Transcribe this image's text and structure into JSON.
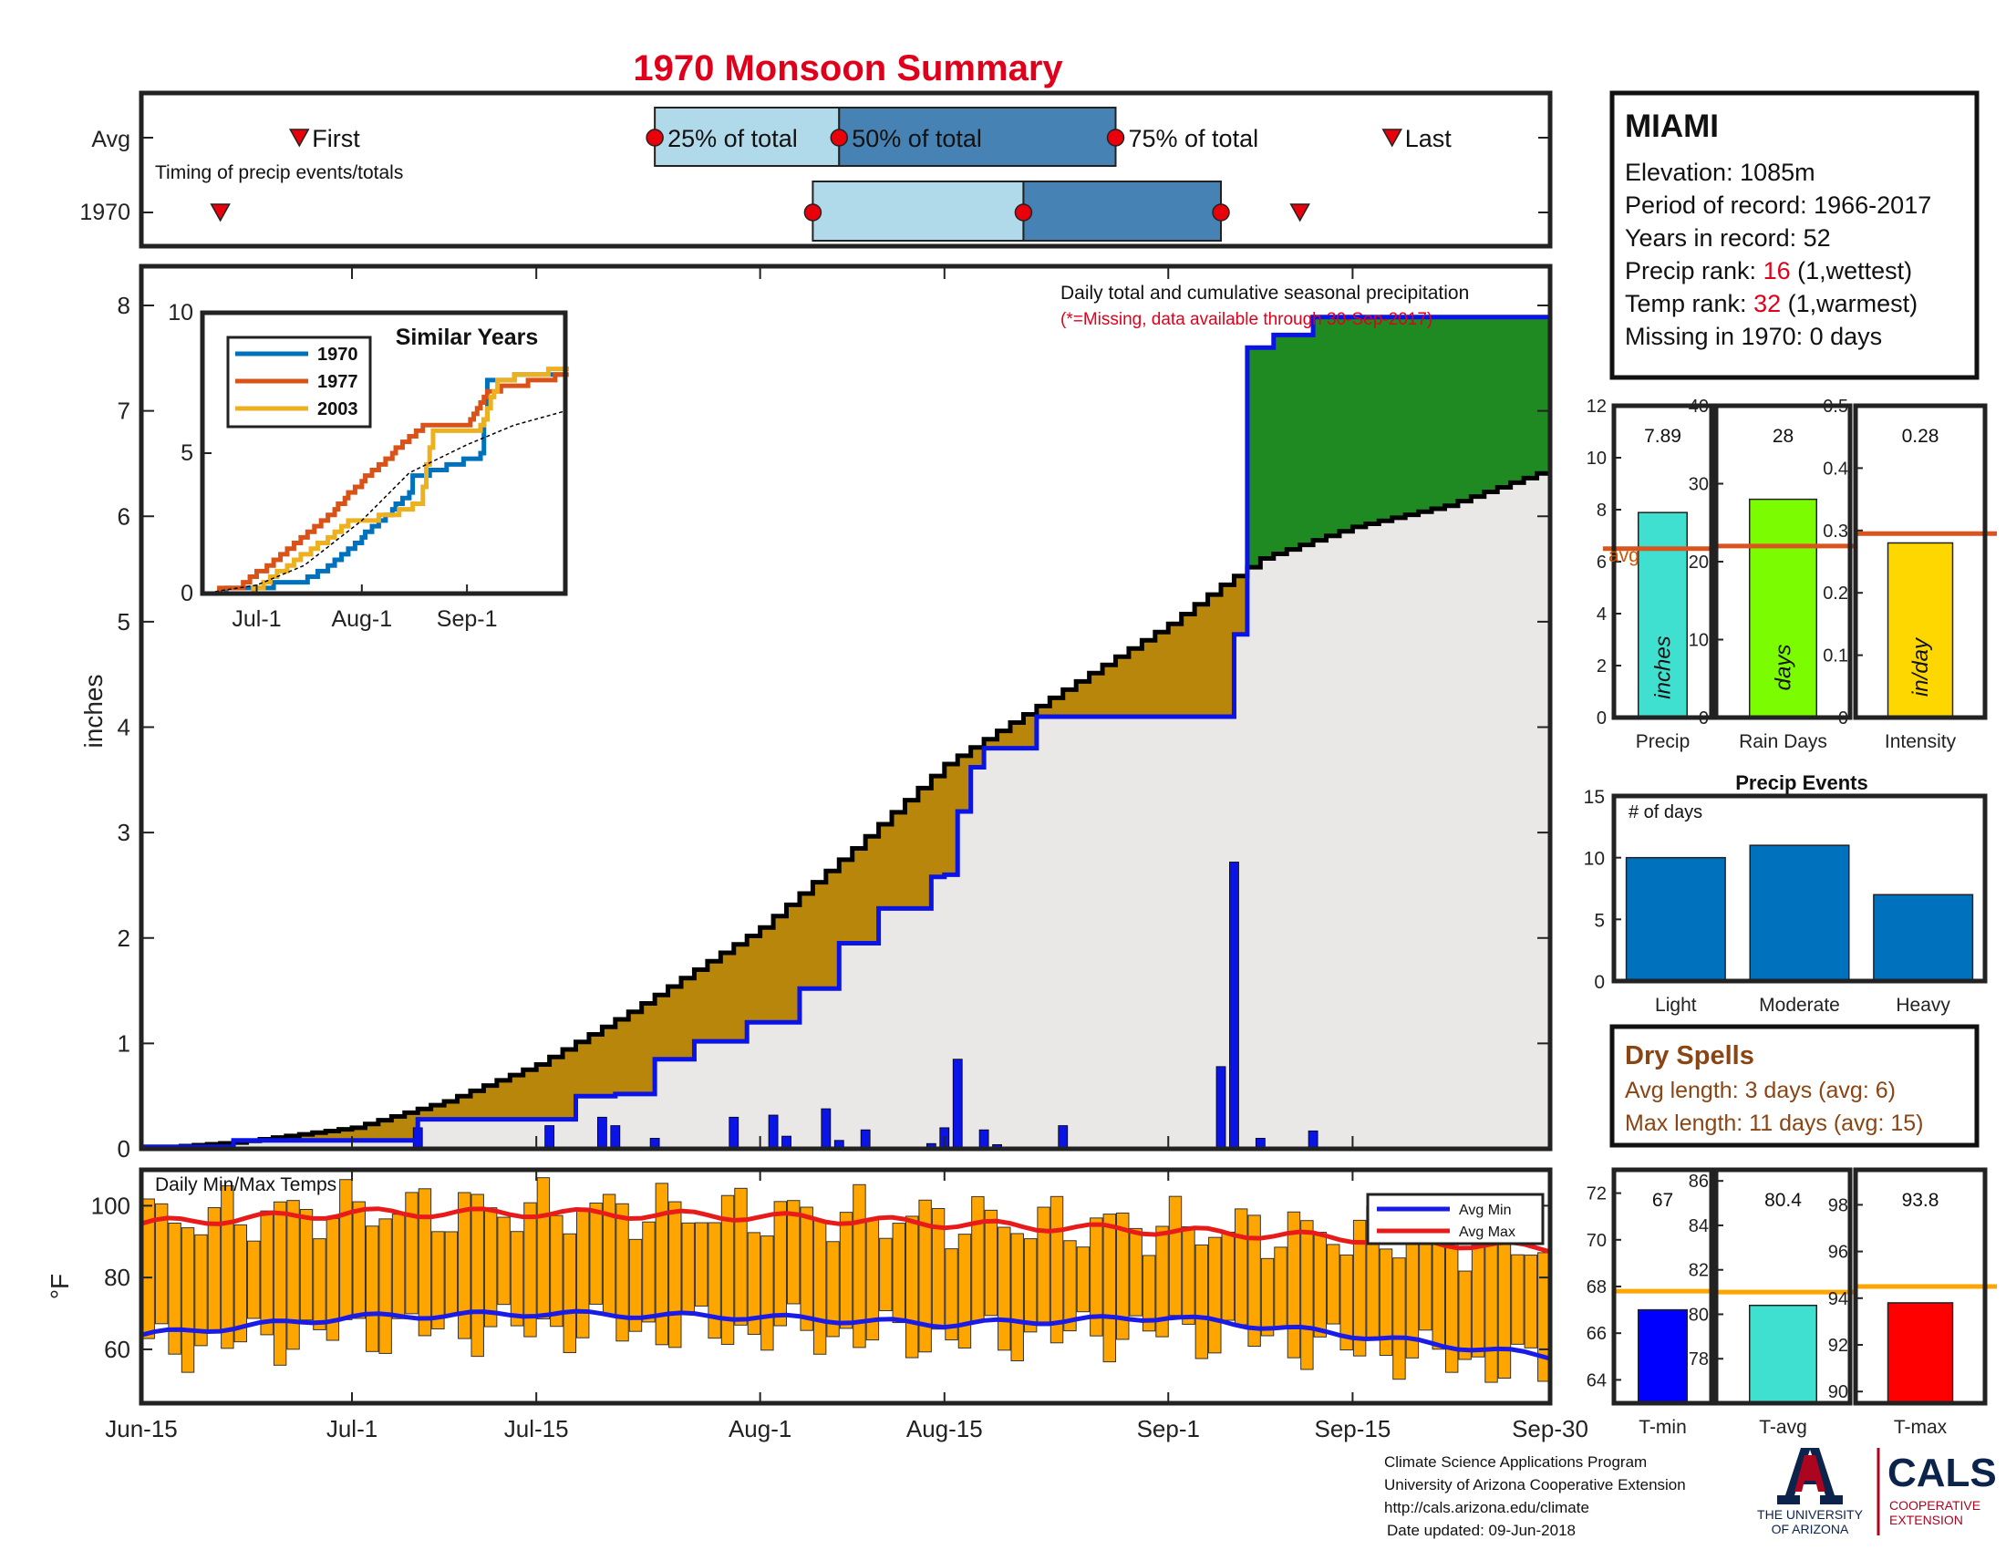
{
  "title": "1970 Monsoon Summary",
  "colors": {
    "title": "#e0001b",
    "frame": "#222222",
    "q_light": "#b0d9ea",
    "q_dark": "#4682b4",
    "marker": "#e8000b",
    "above_avg": "#1f8a22",
    "below_avg": "#b8860b",
    "avg_fill": "#e9e8e7",
    "obs_line": "#0a14e6",
    "bars": "#0a14e6",
    "temp_bar": "#ffa500",
    "avg_min": "#1b1be8",
    "avg_max": "#e81b1b",
    "brown": "#8b4513",
    "red_rank": "#e0001b",
    "uofa_blue": "#0c234b",
    "uofa_red": "#ab0520"
  },
  "timing": {
    "row_avg": "Avg",
    "row_year": "1970",
    "first_label": "First",
    "last_label": "Last",
    "q25_label": "25% of total",
    "q50_label": "50% of total",
    "q75_label": "75% of total",
    "caption": "Timing of precip events/totals",
    "avg": {
      "first": "2018-06-27",
      "q25": "2018-07-24",
      "q50": "2018-08-07",
      "q75": "2018-08-28",
      "last": "2018-09-18"
    },
    "year": {
      "first": "2018-06-21",
      "q25": "2018-08-05",
      "q50": "2018-08-21",
      "q75": "2018-09-05",
      "last": "2018-09-11"
    }
  },
  "info": {
    "station": "MIAMI",
    "elevation": "Elevation: 1085m",
    "period": "Period of record: 1966-2017",
    "years": "Years in record: 52",
    "precip_rank_prefix": "Precip rank: ",
    "precip_rank_value": "16",
    "precip_rank_suffix": " (1,wettest)",
    "temp_rank_prefix": "Temp rank: ",
    "temp_rank_value": "32",
    "temp_rank_suffix": " (1,warmest)",
    "missing": "Missing in 1970: 0 days"
  },
  "main": {
    "ylabel": "inches",
    "title_line1": "Daily total and cumulative seasonal precipitation",
    "title_line2": "(*=Missing, data available through 30-Sep-2017)",
    "x_ticks": [
      "Jun-15",
      "Jul-1",
      "Jul-15",
      "Aug-1",
      "Aug-15",
      "Sep-1",
      "Sep-15",
      "Sep-30"
    ],
    "y_ticks": [
      "0",
      "1",
      "2",
      "3",
      "4",
      "5",
      "6",
      "7",
      "8"
    ]
  },
  "inset": {
    "title": "Similar Years",
    "legend": [
      "1970",
      "1977",
      "2003"
    ],
    "series_colors": [
      "#0072bd",
      "#d95319",
      "#edb120"
    ],
    "x_ticks": [
      "Jul-1",
      "Aug-1",
      "Sep-1"
    ],
    "y_ticks": [
      "0",
      "5",
      "10"
    ]
  },
  "temps": {
    "title": "Daily Min/Max Temps",
    "ylabel": "°F",
    "y_ticks": [
      "60",
      "80",
      "100"
    ],
    "legend_min": "Avg Min",
    "legend_max": "Avg Max"
  },
  "stats": {
    "precip": {
      "value_label": "7.89",
      "unit": "inches",
      "xlabel": "Precip",
      "avg_label": "avg",
      "y_ticks": [
        "0",
        "2",
        "4",
        "6",
        "8",
        "10",
        "12"
      ]
    },
    "rain_days": {
      "value_label": "28",
      "unit": "days",
      "xlabel": "Rain Days",
      "y_ticks": [
        "0",
        "10",
        "20",
        "30",
        "40"
      ]
    },
    "intensity": {
      "value_label": "0.28",
      "unit": "in/day",
      "xlabel": "Intensity",
      "y_ticks": [
        "0",
        "0.1",
        "0.2",
        "0.3",
        "0.4",
        "0.5"
      ]
    }
  },
  "events": {
    "title": "Precip Events",
    "ylabel": "# of days",
    "y_ticks": [
      "0",
      "5",
      "10",
      "15"
    ]
  },
  "dry_spells": {
    "title": "Dry Spells",
    "avg_length": "Avg length: 3 days (avg: 6)",
    "max_length": "Max length: 11 days (avg: 15)"
  },
  "temp_stats": {
    "tmin": {
      "value_label": "67",
      "xlabel": "T-min",
      "y_ticks": [
        "64",
        "66",
        "68",
        "70",
        "72"
      ]
    },
    "tavg": {
      "value_label": "80.4",
      "xlabel": "T-avg",
      "y_ticks": [
        "78",
        "80",
        "82",
        "84",
        "86"
      ]
    },
    "tmax": {
      "value_label": "93.8",
      "xlabel": "T-max",
      "y_ticks": [
        "90",
        "92",
        "94",
        "96",
        "98"
      ]
    }
  },
  "footer": {
    "line1": "Climate Science Applications Program",
    "line2": "University of Arizona Cooperative Extension",
    "line3": "http://cals.arizona.edu/climate",
    "line4": "Date updated: 09-Jun-2018",
    "uofa_line1": "THE UNIVERSITY",
    "uofa_line2": "OF ARIZONA",
    "cals": "CALS",
    "cals_sub1": "COOPERATIVE",
    "cals_sub2": "EXTENSION"
  },
  "chart_data": [
    {
      "type": "line",
      "title": "Daily total and cumulative seasonal precipitation",
      "xlabel": "",
      "ylabel": "inches",
      "xlim": [
        "2018-06-15",
        "2018-09-30"
      ],
      "ylim": [
        0,
        8
      ],
      "series": [
        {
          "name": "1970 cumulative",
          "x": [
            "2018-06-15",
            "2018-06-22",
            "2018-07-05",
            "2018-07-06",
            "2018-07-15",
            "2018-07-18",
            "2018-07-21",
            "2018-07-24",
            "2018-07-27",
            "2018-07-31",
            "2018-08-04",
            "2018-08-07",
            "2018-08-10",
            "2018-08-14",
            "2018-08-15",
            "2018-08-16",
            "2018-08-17",
            "2018-08-18",
            "2018-08-21",
            "2018-08-22",
            "2018-09-05",
            "2018-09-06",
            "2018-09-07",
            "2018-09-09",
            "2018-09-12",
            "2018-09-30"
          ],
          "values": [
            0.02,
            0.08,
            0.08,
            0.28,
            0.28,
            0.5,
            0.52,
            0.85,
            1.02,
            1.2,
            1.52,
            1.95,
            2.28,
            2.58,
            2.6,
            3.2,
            3.62,
            3.8,
            3.8,
            4.1,
            4.1,
            4.88,
            7.6,
            7.72,
            7.89,
            7.89
          ]
        },
        {
          "name": "Average cumulative",
          "x": [
            "2018-06-15",
            "2018-06-22",
            "2018-07-01",
            "2018-07-08",
            "2018-07-15",
            "2018-07-22",
            "2018-08-01",
            "2018-08-08",
            "2018-08-15",
            "2018-08-22",
            "2018-09-01",
            "2018-09-05",
            "2018-09-08",
            "2018-09-15",
            "2018-09-22",
            "2018-09-30"
          ],
          "values": [
            0.0,
            0.06,
            0.2,
            0.45,
            0.8,
            1.3,
            2.1,
            2.85,
            3.65,
            4.2,
            4.98,
            5.35,
            5.6,
            5.9,
            6.1,
            6.45
          ]
        },
        {
          "name": "Daily precip",
          "x": [
            "2018-07-06",
            "2018-07-16",
            "2018-07-20",
            "2018-07-21",
            "2018-07-24",
            "2018-07-30",
            "2018-08-02",
            "2018-08-03",
            "2018-08-06",
            "2018-08-07",
            "2018-08-09",
            "2018-08-14",
            "2018-08-15",
            "2018-08-16",
            "2018-08-18",
            "2018-08-19",
            "2018-08-24",
            "2018-09-05",
            "2018-09-06",
            "2018-09-08",
            "2018-09-12"
          ],
          "values": [
            0.2,
            0.22,
            0.3,
            0.22,
            0.1,
            0.3,
            0.32,
            0.12,
            0.38,
            0.08,
            0.18,
            0.05,
            0.2,
            0.85,
            0.18,
            0.04,
            0.22,
            0.78,
            2.72,
            0.1,
            0.17
          ]
        }
      ]
    },
    {
      "type": "line",
      "title": "Similar Years",
      "ylim": [
        0,
        10
      ],
      "series": [
        {
          "name": "1970",
          "x": [
            "2018-06-15",
            "2018-07-06",
            "2018-07-16",
            "2018-07-24",
            "2018-08-01",
            "2018-08-07",
            "2018-08-15",
            "2018-08-16",
            "2018-09-05",
            "2018-09-07",
            "2018-09-30"
          ],
          "values": [
            0,
            0.3,
            0.5,
            1.1,
            2.0,
            2.6,
            3.6,
            4.1,
            4.9,
            7.6,
            7.9
          ]
        },
        {
          "name": "1977",
          "x": [
            "2018-06-15",
            "2018-06-25",
            "2018-07-01",
            "2018-07-10",
            "2018-07-20",
            "2018-08-01",
            "2018-08-10",
            "2018-08-20",
            "2018-09-01",
            "2018-09-07",
            "2018-09-30"
          ],
          "values": [
            0,
            0.2,
            0.7,
            1.5,
            2.5,
            4.0,
            5.0,
            6.0,
            6.0,
            7.2,
            7.8
          ]
        },
        {
          "name": "2003",
          "x": [
            "2018-06-15",
            "2018-06-30",
            "2018-07-08",
            "2018-07-20",
            "2018-07-28",
            "2018-08-10",
            "2018-08-18",
            "2018-08-22",
            "2018-09-05",
            "2018-09-10",
            "2018-09-30"
          ],
          "values": [
            0,
            0.1,
            0.8,
            1.8,
            2.5,
            2.8,
            3.2,
            5.8,
            5.9,
            7.6,
            8.0
          ]
        },
        {
          "name": "Average",
          "x": [
            "2018-06-15",
            "2018-07-01",
            "2018-07-15",
            "2018-08-01",
            "2018-08-15",
            "2018-09-01",
            "2018-09-15",
            "2018-09-30"
          ],
          "values": [
            0,
            0.3,
            1.0,
            2.6,
            4.3,
            5.3,
            6.0,
            6.5
          ]
        }
      ]
    },
    {
      "type": "bar",
      "title": "Daily Min/Max Temps",
      "ylabel": "°F",
      "ylim": [
        45,
        110
      ],
      "series": [
        {
          "name": "Avg Min",
          "x": [
            "2018-06-15",
            "2018-07-01",
            "2018-07-15",
            "2018-08-01",
            "2018-08-15",
            "2018-09-01",
            "2018-09-15",
            "2018-09-30"
          ],
          "values": [
            64,
            69,
            70,
            69,
            67,
            69,
            64,
            58
          ]
        },
        {
          "name": "Avg Max",
          "x": [
            "2018-06-15",
            "2018-07-01",
            "2018-07-15",
            "2018-08-01",
            "2018-08-15",
            "2018-09-01",
            "2018-09-15",
            "2018-09-30"
          ],
          "values": [
            95,
            98,
            98,
            97,
            95,
            93,
            91,
            88
          ]
        }
      ]
    },
    {
      "type": "bar",
      "categories": [
        "Precip"
      ],
      "values": [
        7.89
      ],
      "average": 6.5,
      "ylim": [
        0,
        12
      ]
    },
    {
      "type": "bar",
      "categories": [
        "Rain Days"
      ],
      "values": [
        28
      ],
      "average": 22,
      "ylim": [
        0,
        40
      ]
    },
    {
      "type": "bar",
      "categories": [
        "Intensity"
      ],
      "values": [
        0.28
      ],
      "average": 0.295,
      "ylim": [
        0,
        0.5
      ]
    },
    {
      "type": "bar",
      "title": "Precip Events",
      "ylabel": "# of days",
      "categories": [
        "Light",
        "Moderate",
        "Heavy"
      ],
      "values": [
        10,
        11,
        7
      ],
      "ylim": [
        0,
        15
      ]
    },
    {
      "type": "bar",
      "categories": [
        "T-min"
      ],
      "values": [
        67
      ],
      "average": 67.8,
      "ylim": [
        63,
        73
      ]
    },
    {
      "type": "bar",
      "categories": [
        "T-avg"
      ],
      "values": [
        80.4
      ],
      "average": 81.0,
      "ylim": [
        76,
        86
      ]
    },
    {
      "type": "bar",
      "categories": [
        "T-max"
      ],
      "values": [
        93.8
      ],
      "average": 94.5,
      "ylim": [
        89.5,
        99
      ]
    }
  ]
}
